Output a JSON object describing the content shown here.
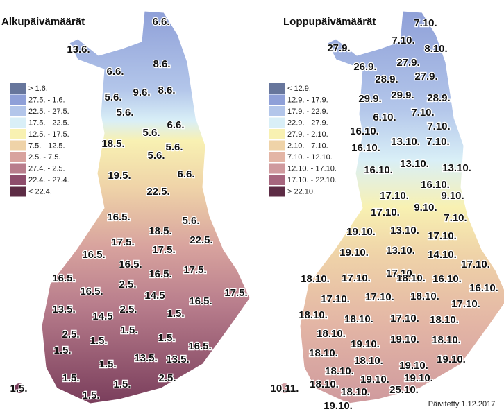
{
  "maps": [
    {
      "title": "Alkupäivämäärät",
      "legend": [
        {
          "label": "> 1.6.",
          "color": "#67769c"
        },
        {
          "label": "27.5. - 1.6.",
          "color": "#8fa0d8"
        },
        {
          "label": "22.5. - 27.5.",
          "color": "#b3c6ea"
        },
        {
          "label": "17.5. - 22.5.",
          "color": "#d9eff7"
        },
        {
          "label": "12.5. - 17.5.",
          "color": "#f8f1b2"
        },
        {
          "label": "7.5. - 12.5.",
          "color": "#efd3a8"
        },
        {
          "label": "2.5. - 7.5.",
          "color": "#d8a39e"
        },
        {
          "label": "27.4. - 2.5.",
          "color": "#b87d8c"
        },
        {
          "label": "22.4. - 27.4.",
          "color": "#8e4d6c"
        },
        {
          "label": "< 22.4.",
          "color": "#5d2c45"
        }
      ],
      "labels": [
        "6.6.",
        "13.6.",
        "6.6.",
        "8.6.",
        "5.6.",
        "9.6.",
        "8.6.",
        "5.6.",
        "5.6.",
        "6.6.",
        "18.5.",
        "5.6.",
        "5.6.",
        "19.5.",
        "6.6.",
        "22.5.",
        "16.5.",
        "18.5.",
        "5.6.",
        "17.5.",
        "17.5.",
        "22.5.",
        "16.5.",
        "16.5.",
        "16.5.",
        "17.5.",
        "16.5.",
        "2.5.",
        "14.5",
        "16.5.",
        "17.5.",
        "16.5.",
        "13.5.",
        "2.5.",
        "1.5.",
        "14.5",
        "1.5.",
        "2.5.",
        "1.5.",
        "1.5.",
        "16.5.",
        "1.5.",
        "1.5.",
        "13.5.",
        "13.5.",
        "1.5.",
        "1.5.",
        "2.5.",
        "1.5.",
        "1.5."
      ]
    },
    {
      "title": "Loppupäivämäärät",
      "legend": [
        {
          "label": "< 12.9.",
          "color": "#67769c"
        },
        {
          "label": "12.9. - 17.9.",
          "color": "#8fa0d8"
        },
        {
          "label": "17.9. - 22.9.",
          "color": "#b3c6ea"
        },
        {
          "label": "22.9. - 27.9.",
          "color": "#d9eff7"
        },
        {
          "label": "27.9. - 2.10.",
          "color": "#f8f1b2"
        },
        {
          "label": "2.10. - 7.10.",
          "color": "#efd3a8"
        },
        {
          "label": "7.10. - 12.10.",
          "color": "#e3b5a5"
        },
        {
          "label": "12.10. - 17.10.",
          "color": "#cf9a9e"
        },
        {
          "label": "17.10. - 22.10.",
          "color": "#a6667e"
        },
        {
          "label": "> 22.10.",
          "color": "#5d2c45"
        }
      ],
      "labels": [
        "7.10.",
        "27.9.",
        "7.10.",
        "8.10.",
        "26.9.",
        "27.9.",
        "28.9.",
        "27.9.",
        "29.9.",
        "29.9.",
        "28.9.",
        "6.10.",
        "7.10.",
        "16.10.",
        "13.10.",
        "7.10.",
        "7.10.",
        "16.10.",
        "13.10.",
        "13.10.",
        "16.10.",
        "16.10.",
        "17.10.",
        "9.10.",
        "17.10.",
        "9.10.",
        "7.10.",
        "19.10.",
        "13.10.",
        "17.10.",
        "19.10.",
        "13.10.",
        "14.10.",
        "17.10.",
        "17.10.",
        "18.10.",
        "17.10.",
        "18.10.",
        "16.10.",
        "16.10.",
        "17.10.",
        "17.10.",
        "18.10.",
        "17.10.",
        "18.10.",
        "18.10.",
        "17.10.",
        "18.10.",
        "18.10.",
        "19.10.",
        "19.10.",
        "18.10.",
        "18.10.",
        "18.10.",
        "19.10.",
        "19.10.",
        "18.10.",
        "19.10.",
        "19.10.",
        "10.11.",
        "18.10.",
        "25.10.",
        "18.10.",
        "19.10."
      ]
    }
  ],
  "footer": "Päivitetty 1.12.2017"
}
